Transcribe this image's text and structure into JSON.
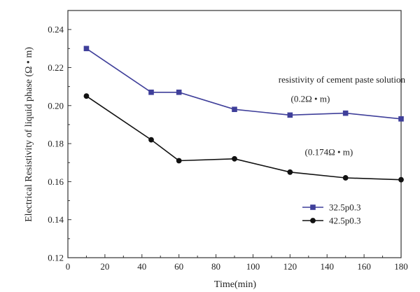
{
  "chart_data": {
    "type": "line",
    "xlabel": "Time(min)",
    "ylabel": "Electrical Resistivity of liquid phase (Ω • m)",
    "xlim": [
      0,
      180
    ],
    "ylim": [
      0.12,
      0.25
    ],
    "x_ticks": [
      0,
      20,
      40,
      60,
      80,
      100,
      120,
      140,
      160,
      180
    ],
    "x_tick_labels": [
      "0",
      "20",
      "40",
      "60",
      "80",
      "100",
      "120",
      "140",
      "160",
      "180"
    ],
    "y_ticks": [
      0.12,
      0.14,
      0.16,
      0.18,
      0.2,
      0.22,
      0.24
    ],
    "y_tick_labels": [
      "0.12",
      "0.14",
      "0.16",
      "0.18",
      "0.20",
      "0.22",
      "0.24"
    ],
    "grid": false,
    "legend_position": "bottom-right",
    "series": [
      {
        "name": "32.5p0.3",
        "marker": "square",
        "color": "#3f3f9a",
        "x": [
          10,
          45,
          60,
          90,
          120,
          150,
          180
        ],
        "y": [
          0.23,
          0.207,
          0.207,
          0.198,
          0.195,
          0.196,
          0.193
        ]
      },
      {
        "name": "42.5p0.3",
        "marker": "circle",
        "color": "#111111",
        "x": [
          10,
          45,
          60,
          90,
          120,
          150,
          180
        ],
        "y": [
          0.205,
          0.182,
          0.171,
          0.172,
          0.165,
          0.162,
          0.161
        ]
      }
    ],
    "annotations": [
      {
        "text": "resistivity of cement paste solution",
        "x": 148,
        "y": 0.212
      },
      {
        "text": "(0.2Ω • m)",
        "x": 131,
        "y": 0.202
      },
      {
        "text": "(0.174Ω • m)",
        "x": 141,
        "y": 0.174
      }
    ]
  }
}
